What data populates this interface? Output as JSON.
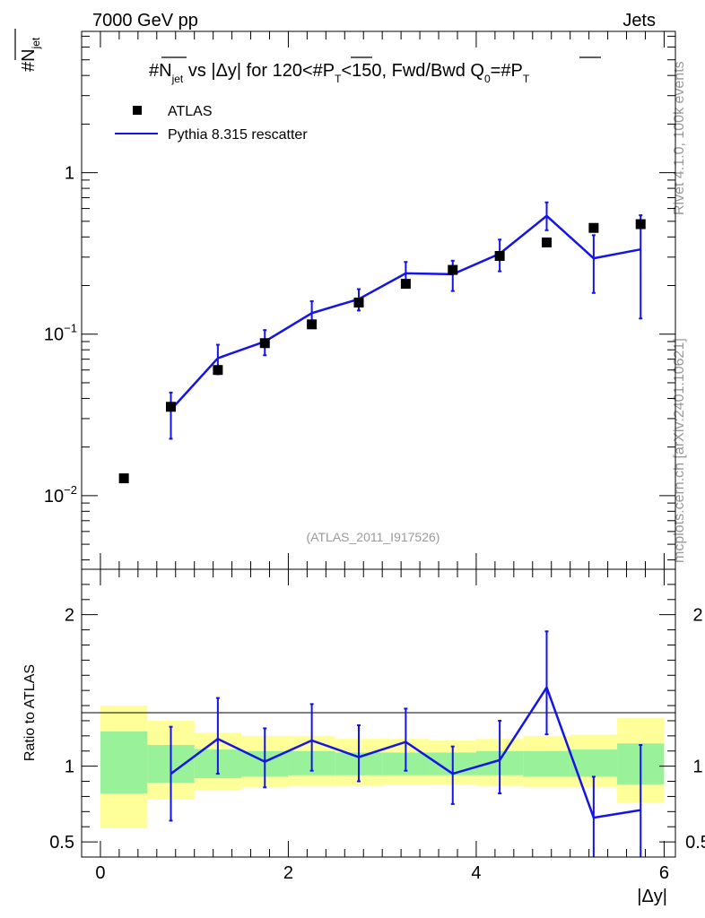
{
  "header": {
    "energy_label": "7000 GeV pp",
    "category_label": "Jets"
  },
  "side_labels": {
    "rivet": "Rivet 4.1.0,  100k events",
    "mcplots": "mcplots.cern.ch [arXiv:2401.10621]"
  },
  "watermark": "(ATLAS_2011_I917526)",
  "colors": {
    "mc": "#1414e6",
    "band_inner": "#99f299",
    "band_outer": "#ffff99",
    "data": "#000000"
  },
  "chart_data": [
    {
      "type": "scatter",
      "panel": "main",
      "title": "#N_jet vs |Δy| for 120<#P_T<150, Fwd/Bwd Q0=#P_T",
      "title_parts": {
        "a": "#N",
        "a_sub": "jet",
        "b": " vs |Δy| for 120<#P",
        "b_sub": "T",
        "c": "<150, Fwd/Bwd Q",
        "c_sub": "0",
        "d": "=#P",
        "d_sub": "T"
      },
      "ylabel": "#N",
      "ylabel_sub": "jet",
      "yscale": "log",
      "ylim": [
        0.0035,
        7.5
      ],
      "xlim": [
        -0.2,
        6.12
      ],
      "yticks": [
        {
          "value": 0.01,
          "base": "10",
          "exp": "−2"
        },
        {
          "value": 0.1,
          "base": "10",
          "exp": "−1"
        },
        {
          "value": 1,
          "base": "1",
          "exp": ""
        }
      ],
      "legend": [
        "ATLAS",
        "Pythia 8.315 rescatter"
      ],
      "series": [
        {
          "name": "ATLAS",
          "kind": "markers",
          "x": [
            0.25,
            0.75,
            1.25,
            1.75,
            2.25,
            2.75,
            3.25,
            3.75,
            4.25,
            4.75,
            5.25,
            5.75
          ],
          "values": [
            0.0128,
            0.0355,
            0.06,
            0.088,
            0.115,
            0.157,
            0.205,
            0.25,
            0.305,
            0.37,
            0.455,
            0.48
          ]
        },
        {
          "name": "Pythia 8.315 rescatter",
          "kind": "line",
          "x": [
            0.75,
            1.25,
            1.75,
            2.25,
            2.75,
            3.25,
            3.75,
            4.25,
            4.75,
            5.25,
            5.75
          ],
          "values": [
            0.034,
            0.071,
            0.09,
            0.135,
            0.165,
            0.238,
            0.235,
            0.315,
            0.54,
            0.295,
            0.335
          ],
          "err_low": [
            0.0225,
            0.0565,
            0.074,
            0.11,
            0.14,
            0.195,
            0.185,
            0.245,
            0.44,
            0.18,
            0.125
          ],
          "err_high": [
            0.0435,
            0.086,
            0.106,
            0.16,
            0.19,
            0.28,
            0.285,
            0.385,
            0.655,
            0.41,
            0.545
          ]
        }
      ]
    },
    {
      "type": "line",
      "panel": "ratio",
      "ylabel": "Ratio to ATLAS",
      "xlabel": "|Δy|",
      "ylim": [
        0.4,
        2.3
      ],
      "xlim": [
        -0.2,
        6.12
      ],
      "xticks": [
        0,
        2,
        4,
        6
      ],
      "yticks": [
        0.5,
        1,
        2
      ],
      "bands": {
        "x_edges": [
          0,
          0.5,
          1,
          1.5,
          2,
          2.5,
          3,
          3.5,
          4,
          4.5,
          5,
          5.5,
          6
        ],
        "outer_low": [
          0.59,
          0.78,
          0.84,
          0.86,
          0.87,
          0.87,
          0.88,
          0.88,
          0.87,
          0.86,
          0.86,
          0.76
        ],
        "outer_high": [
          1.4,
          1.3,
          1.22,
          1.2,
          1.2,
          1.18,
          1.18,
          1.17,
          1.18,
          1.2,
          1.21,
          1.32
        ],
        "inner_low": [
          0.82,
          0.89,
          0.92,
          0.93,
          0.94,
          0.94,
          0.94,
          0.94,
          0.94,
          0.93,
          0.93,
          0.88
        ],
        "inner_high": [
          1.23,
          1.14,
          1.11,
          1.1,
          1.1,
          1.09,
          1.09,
          1.09,
          1.1,
          1.1,
          1.11,
          1.15
        ]
      },
      "series": [
        {
          "name": "Pythia 8.315 rescatter",
          "x": [
            0.75,
            1.25,
            1.75,
            2.25,
            2.75,
            3.25,
            3.75,
            4.25,
            4.75,
            5.25,
            5.75
          ],
          "values": [
            0.95,
            1.18,
            1.03,
            1.17,
            1.06,
            1.16,
            0.95,
            1.04,
            1.52,
            0.66,
            0.71
          ],
          "err_low": [
            0.64,
            0.95,
            0.86,
            0.97,
            0.9,
            0.97,
            0.75,
            0.82,
            1.21,
            0.35,
            0.3
          ],
          "err_high": [
            1.26,
            1.45,
            1.25,
            1.41,
            1.27,
            1.38,
            1.13,
            1.3,
            1.89,
            0.93,
            1.14
          ]
        }
      ]
    }
  ]
}
